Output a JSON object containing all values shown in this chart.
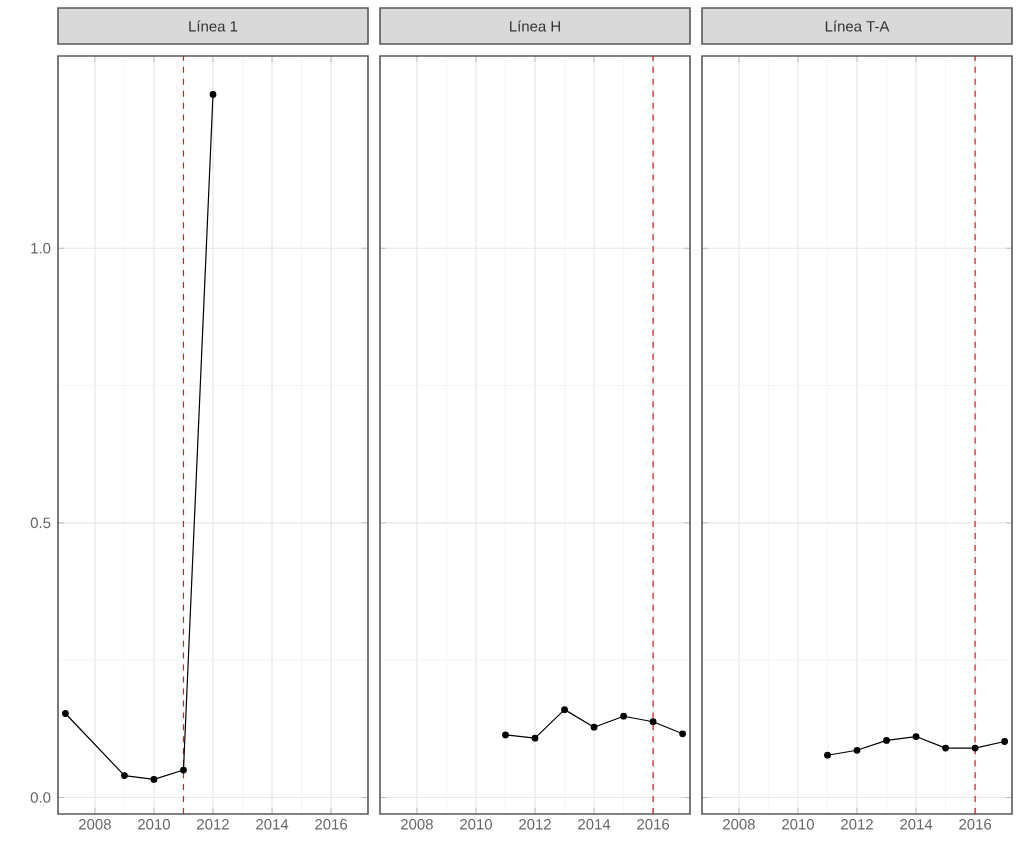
{
  "chart_data": [
    {
      "type": "line",
      "title": "Línea 1",
      "x": [
        2007,
        2009,
        2010,
        2011,
        2012
      ],
      "values": [
        0.153,
        0.04,
        0.033,
        0.05,
        1.28
      ],
      "color": "#000000",
      "marker": "circle",
      "line_style": "solid",
      "grid": true,
      "xlim": [
        2006.75,
        2017.25
      ],
      "xticks": [
        2008,
        2010,
        2012,
        2014,
        2016
      ],
      "ylim": [
        -0.03,
        1.35
      ],
      "yticks": [
        {
          "value": 0,
          "label": "0.0"
        },
        {
          "value": 0.5,
          "label": "0.5"
        },
        {
          "value": 1,
          "label": "1.0"
        }
      ],
      "ref_lines": [
        {
          "axis": "x",
          "value": 2011,
          "color": "#e31a1c",
          "line_style": "dashed"
        }
      ]
    },
    {
      "type": "line",
      "title": "Línea H",
      "x": [
        2011,
        2012,
        2013,
        2014,
        2015,
        2016,
        2017
      ],
      "values": [
        0.114,
        0.108,
        0.16,
        0.128,
        0.148,
        0.138,
        0.116
      ],
      "color": "#000000",
      "marker": "circle",
      "line_style": "solid",
      "grid": true,
      "xlim": [
        2006.75,
        2017.25
      ],
      "xticks": [
        2008,
        2010,
        2012,
        2014,
        2016
      ],
      "ylim": [
        -0.03,
        1.35
      ],
      "yticks": [
        0.0,
        0.5,
        1.0
      ],
      "tick_labels": "x",
      "ref_lines": [
        {
          "axis": "x",
          "value": 2016,
          "color": "#e31a1c",
          "line_style": "dashed"
        }
      ]
    },
    {
      "type": "line",
      "title": "Línea T-A",
      "x": [
        2011,
        2012,
        2013,
        2014,
        2015,
        2016,
        2017
      ],
      "values": [
        0.077,
        0.086,
        0.104,
        0.111,
        0.09,
        0.09,
        0.102
      ],
      "color": "#000000",
      "marker": "circle",
      "line_style": "solid",
      "grid": true,
      "xlim": [
        2006.75,
        2017.25
      ],
      "xticks": [
        2008,
        2010,
        2012,
        2014,
        2016
      ],
      "ylim": [
        -0.03,
        1.35
      ],
      "yticks": [
        0.0,
        0.5,
        1.0
      ],
      "tick_labels": "x",
      "ref_lines": [
        {
          "axis": "x",
          "value": 2016,
          "color": "#e31a1c",
          "line_style": "dashed"
        }
      ]
    }
  ]
}
